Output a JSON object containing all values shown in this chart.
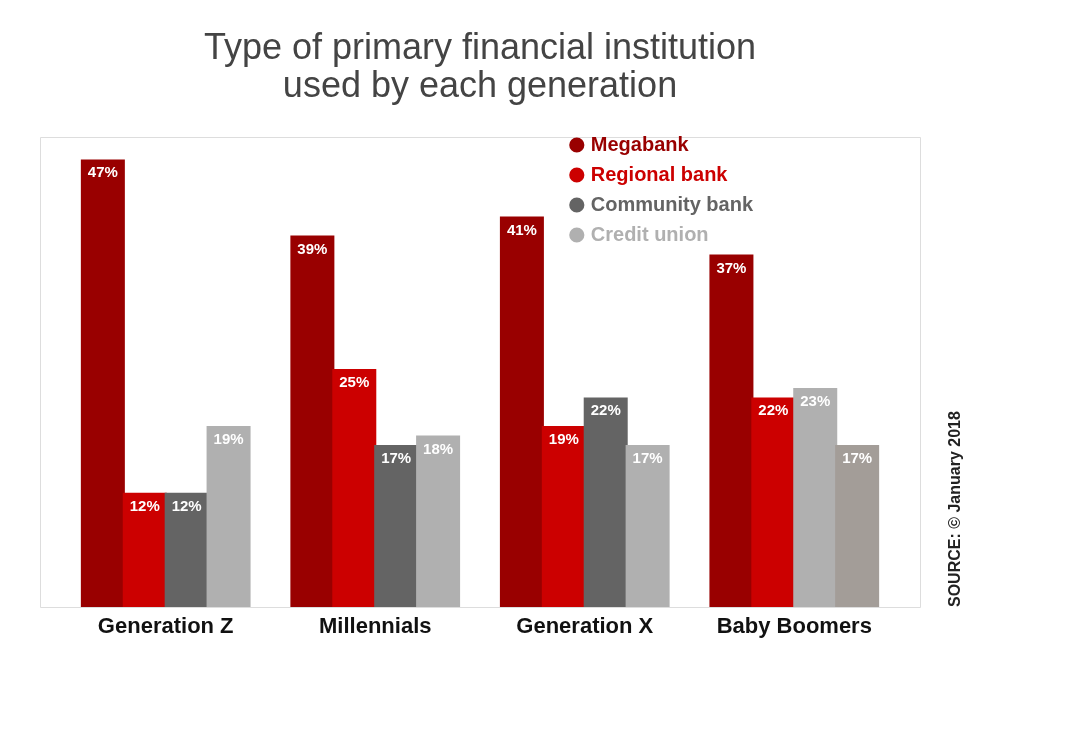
{
  "chart_data": {
    "type": "bar",
    "title": "Type of primary financial institution used by each generation",
    "categories": [
      "Generation Z",
      "Millennials",
      "Generation X",
      "Baby Boomers"
    ],
    "series": [
      {
        "name": "Megabank",
        "color": "#990000",
        "values": [
          47,
          39,
          41,
          37
        ],
        "value_labels": [
          "47%",
          "39%",
          "41%",
          "37%"
        ]
      },
      {
        "name": "Regional bank",
        "color": "#cc0000",
        "values": [
          12,
          25,
          19,
          22
        ],
        "value_labels": [
          "12%",
          "25%",
          "19%",
          "22%"
        ]
      },
      {
        "name": "Community bank",
        "color": "#646464",
        "colors": [
          "#646464",
          "#646464",
          "#646464",
          "#b0b0b0"
        ],
        "values": [
          12,
          17,
          22,
          23
        ],
        "value_labels": [
          "12%",
          "17%",
          "22%",
          "23%"
        ]
      },
      {
        "name": "Credit union",
        "color": "#b0b0b0",
        "colors": [
          "#b0b0b0",
          "#b0b0b0",
          "#b0b0b0",
          "#a39d98"
        ],
        "values": [
          19,
          18,
          17,
          17
        ],
        "value_labels": [
          "19%",
          "18%",
          "17%",
          "17%"
        ]
      }
    ],
    "legend": "top right",
    "annotations": [
      "SOURCE: © January 2018"
    ]
  }
}
